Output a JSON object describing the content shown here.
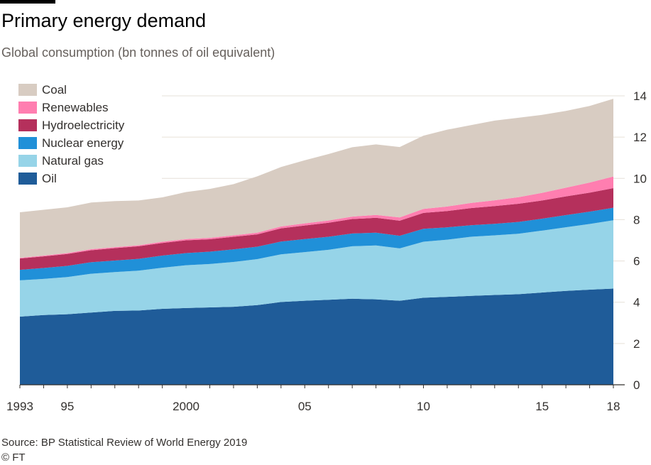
{
  "title": "Primary energy demand",
  "subtitle": "Global consumption (bn tonnes of oil equivalent)",
  "source": "Source: BP Statistical Review of World Energy 2019",
  "credit": "© FT",
  "chart_data": {
    "type": "area",
    "stacked": true,
    "x": [
      1993,
      1994,
      1995,
      1996,
      1997,
      1998,
      1999,
      2000,
      2001,
      2002,
      2003,
      2004,
      2005,
      2006,
      2007,
      2008,
      2009,
      2010,
      2011,
      2012,
      2013,
      2014,
      2015,
      2016,
      2017,
      2018
    ],
    "x_tick_values": [
      1993,
      1995,
      2000,
      2005,
      2010,
      2015,
      2018
    ],
    "x_tick_labels": [
      "1993",
      "95",
      "2000",
      "05",
      "10",
      "15",
      "18"
    ],
    "ylim": [
      0,
      14
    ],
    "y_ticks": [
      0,
      2,
      4,
      6,
      8,
      10,
      12,
      14
    ],
    "y_axis_side": "right",
    "grid": true,
    "legend_position": "top-left",
    "series": [
      {
        "name": "Oil",
        "color": "#1f5c99",
        "values": [
          3.3,
          3.38,
          3.42,
          3.5,
          3.58,
          3.6,
          3.68,
          3.72,
          3.75,
          3.78,
          3.86,
          4.01,
          4.07,
          4.12,
          4.17,
          4.14,
          4.07,
          4.22,
          4.26,
          4.31,
          4.35,
          4.39,
          4.47,
          4.55,
          4.61,
          4.66
        ]
      },
      {
        "name": "Natural gas",
        "color": "#96d4e8",
        "values": [
          1.76,
          1.75,
          1.8,
          1.88,
          1.88,
          1.93,
          1.99,
          2.07,
          2.1,
          2.17,
          2.23,
          2.31,
          2.36,
          2.42,
          2.54,
          2.61,
          2.54,
          2.71,
          2.77,
          2.86,
          2.89,
          2.93,
          3.0,
          3.08,
          3.18,
          3.31
        ]
      },
      {
        "name": "Nuclear energy",
        "color": "#2090d8",
        "values": [
          0.51,
          0.53,
          0.54,
          0.56,
          0.56,
          0.57,
          0.59,
          0.59,
          0.6,
          0.61,
          0.6,
          0.62,
          0.63,
          0.63,
          0.62,
          0.62,
          0.61,
          0.63,
          0.6,
          0.56,
          0.56,
          0.57,
          0.58,
          0.59,
          0.6,
          0.61
        ]
      },
      {
        "name": "Hydroelectricity",
        "color": "#b5305c",
        "values": [
          0.55,
          0.56,
          0.58,
          0.58,
          0.6,
          0.61,
          0.61,
          0.62,
          0.6,
          0.61,
          0.6,
          0.64,
          0.66,
          0.68,
          0.7,
          0.72,
          0.73,
          0.77,
          0.79,
          0.83,
          0.86,
          0.88,
          0.88,
          0.91,
          0.92,
          0.95
        ]
      },
      {
        "name": "Renewables",
        "color": "#ff7eb0",
        "values": [
          0.03,
          0.04,
          0.04,
          0.05,
          0.05,
          0.05,
          0.06,
          0.06,
          0.07,
          0.07,
          0.08,
          0.09,
          0.1,
          0.11,
          0.12,
          0.14,
          0.16,
          0.19,
          0.22,
          0.25,
          0.28,
          0.32,
          0.37,
          0.42,
          0.49,
          0.56
        ]
      },
      {
        "name": "Coal",
        "color": "#d8ccc2",
        "values": [
          2.21,
          2.22,
          2.22,
          2.26,
          2.23,
          2.17,
          2.15,
          2.28,
          2.37,
          2.48,
          2.73,
          2.88,
          3.06,
          3.22,
          3.36,
          3.42,
          3.41,
          3.55,
          3.72,
          3.77,
          3.86,
          3.85,
          3.78,
          3.72,
          3.71,
          3.77
        ]
      }
    ],
    "legend_order": [
      "Coal",
      "Renewables",
      "Hydroelectricity",
      "Nuclear energy",
      "Natural gas",
      "Oil"
    ]
  }
}
